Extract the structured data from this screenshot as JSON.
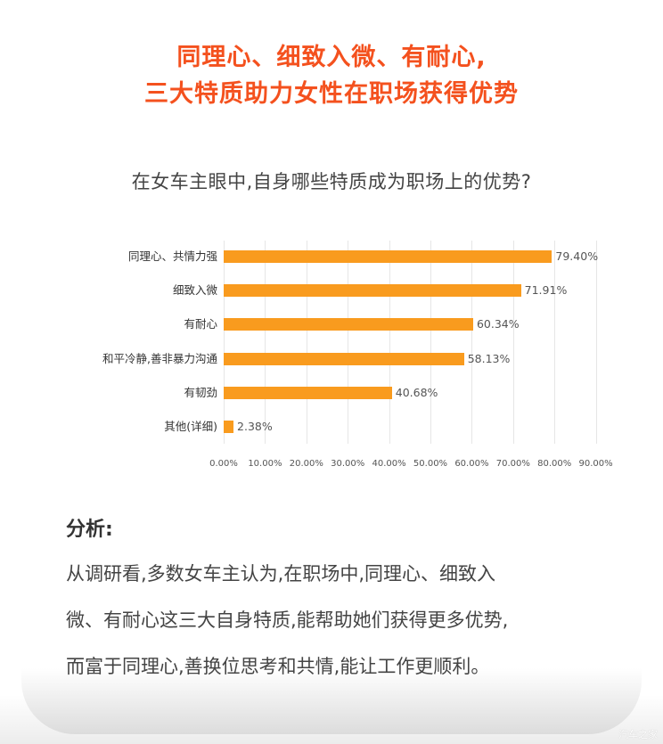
{
  "headline": {
    "line1": "同理心、细致入微、有耐心,",
    "line2": "三大特质助力女性在职场获得优势",
    "color": "#f4511e"
  },
  "chart_data": {
    "type": "bar",
    "orientation": "horizontal",
    "title": "在女车主眼中,自身哪些特质成为职场上的优势?",
    "categories": [
      "同理心、共情力强",
      "细致入微",
      "有耐心",
      "和平冷静,善非暴力沟通",
      "有韧劲",
      "其他(详细)"
    ],
    "values": [
      79.4,
      71.91,
      60.34,
      58.13,
      40.68,
      2.38
    ],
    "value_labels": [
      "79.40%",
      "71.91%",
      "60.34%",
      "58.13%",
      "40.68%",
      "2.38%"
    ],
    "xlabel": "",
    "ylabel": "",
    "xlim": [
      0,
      90
    ],
    "x_ticks": [
      "0.00%",
      "10.00%",
      "20.00%",
      "30.00%",
      "40.00%",
      "50.00%",
      "60.00%",
      "70.00%",
      "80.00%",
      "90.00%"
    ],
    "grid": true,
    "legend": "none",
    "bar_color": "#f99b1e"
  },
  "analysis": {
    "title": "分析:",
    "lines": [
      "从调研看,多数女车主认为,在职场中,同理心、细致入",
      "微、有耐心这三大自身特质,能帮助她们获得更多优势,",
      "而富于同理心,善换位思考和共情,能让工作更顺利。"
    ]
  },
  "watermark": "汽车之家"
}
